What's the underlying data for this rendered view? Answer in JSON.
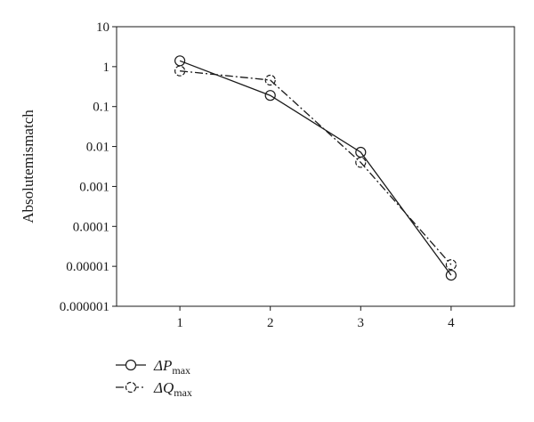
{
  "chart_data": {
    "type": "line",
    "ylabel": "Absolutemismatch",
    "xlabel": "",
    "yscale": "log",
    "ylim": [
      1e-06,
      10
    ],
    "xlim": [
      0.3,
      4.7
    ],
    "x_ticks": [
      1,
      2,
      3,
      4
    ],
    "x_tick_labels": [
      "1",
      "2",
      "3",
      "4"
    ],
    "y_ticks": [
      10,
      1,
      0.1,
      0.01,
      0.001,
      0.0001,
      1e-05,
      1e-06
    ],
    "y_tick_labels": [
      "10",
      "1",
      "0.1",
      "0.01",
      "0.001",
      "0.0001",
      "0.00001",
      "0.000001"
    ],
    "grid": false,
    "legend_position": "bottom-left",
    "series": [
      {
        "name": "ΔP",
        "name_subscript": "max",
        "line_style": "solid",
        "marker": "circle",
        "color": "#1a1a1a",
        "x": [
          1,
          2,
          3,
          4
        ],
        "values": [
          1.4,
          0.19,
          0.0072,
          6e-06
        ]
      },
      {
        "name": "ΔQ",
        "name_subscript": "max",
        "line_style": "dashdot",
        "marker": "circle",
        "color": "#1a1a1a",
        "x": [
          1,
          2,
          3,
          4
        ],
        "values": [
          0.78,
          0.46,
          0.004,
          1.1e-05
        ]
      }
    ]
  }
}
